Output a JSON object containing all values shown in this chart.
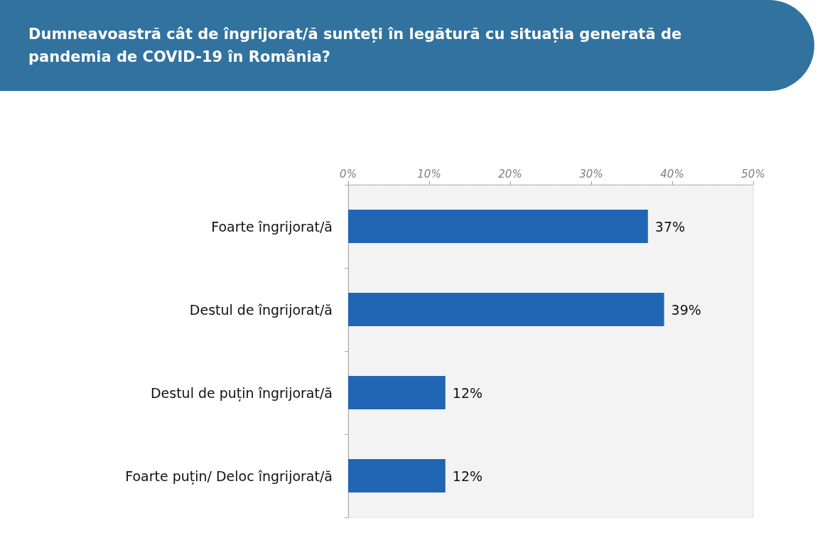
{
  "chart_data": {
    "type": "bar",
    "orientation": "horizontal",
    "title": "Dumneavoastră cât de îngrijorat/ă sunteți în legătură cu situația generată de pandemia de COVID-19 în România?",
    "categories": [
      "Foarte îngrijorat/ă",
      "Destul de îngrijorat/ă",
      "Destul de puțin îngrijorat/ă",
      "Foarte puțin/ Deloc îngrijorat/ă"
    ],
    "values": [
      37,
      39,
      12,
      12
    ],
    "value_labels": [
      "37%",
      "39%",
      "12%",
      "12%"
    ],
    "color": "#2166b5",
    "xlim": [
      0,
      50
    ],
    "xticks": [
      {
        "value": 0,
        "label": "0%"
      },
      {
        "value": 10,
        "label": "10%"
      },
      {
        "value": 20,
        "label": "20%"
      },
      {
        "value": 30,
        "label": "30%"
      },
      {
        "value": 40,
        "label": "40%"
      },
      {
        "value": 50,
        "label": "50%"
      }
    ],
    "grid": false
  }
}
